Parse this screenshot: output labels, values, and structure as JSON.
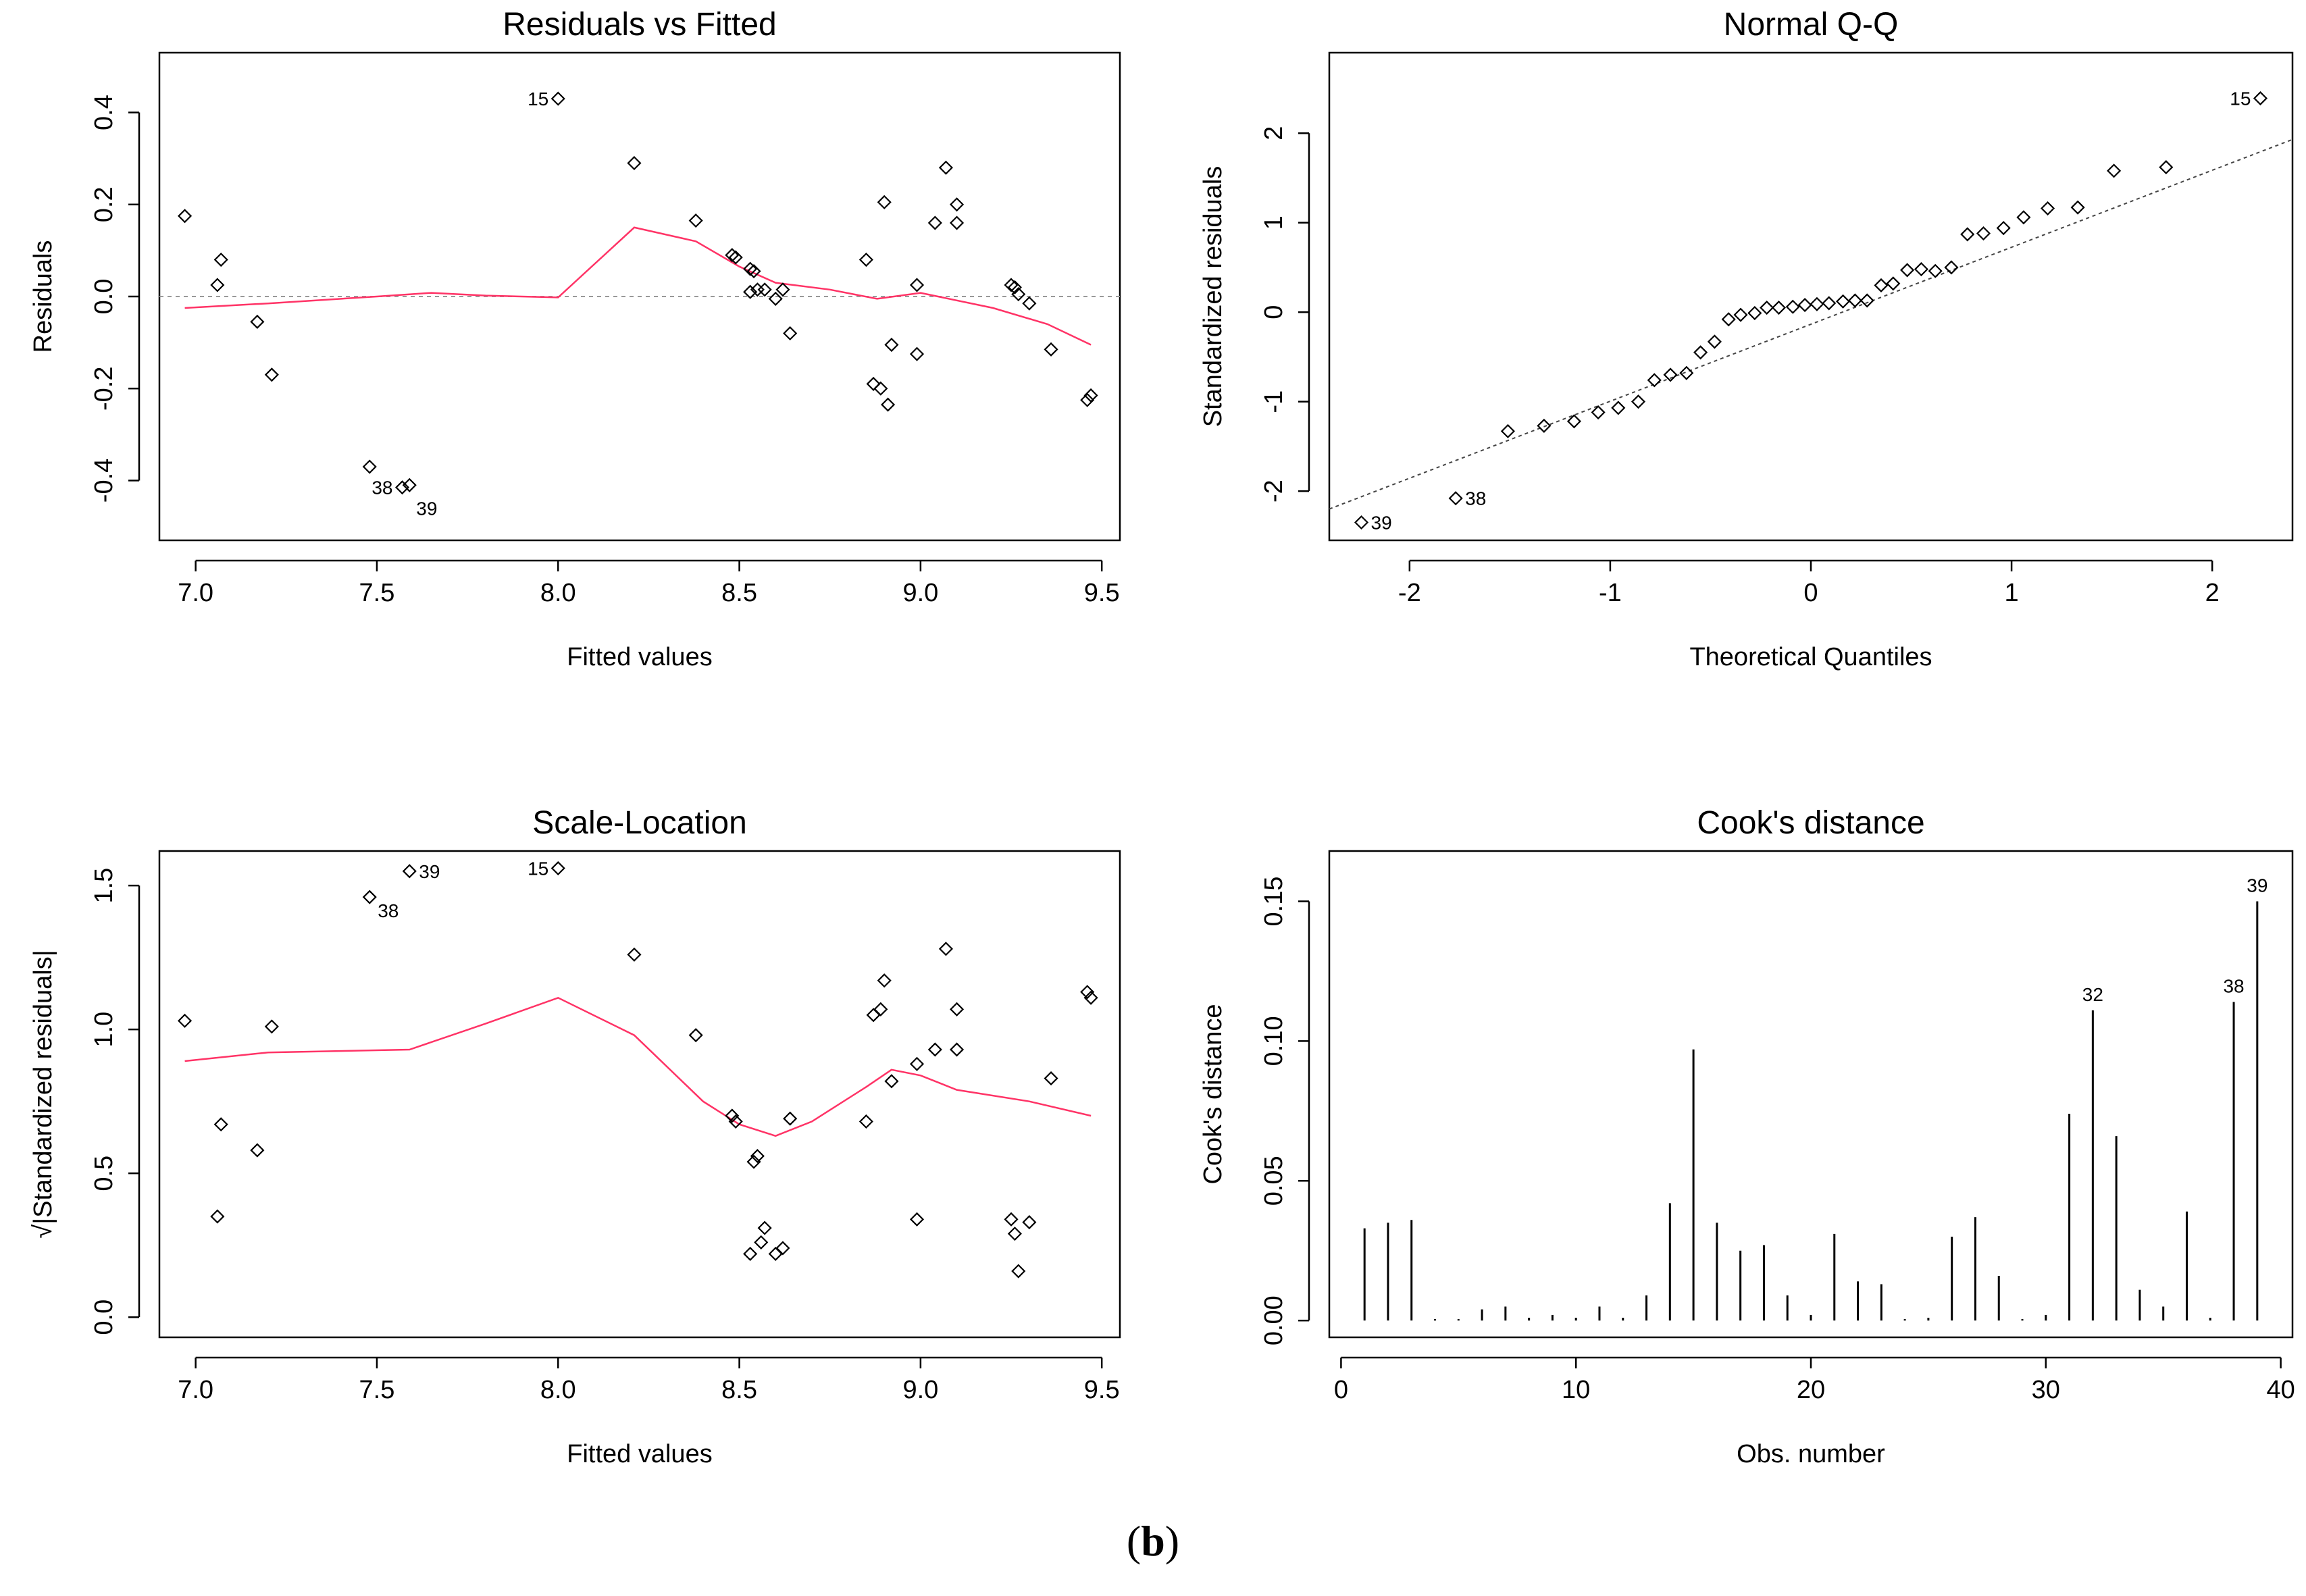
{
  "caption": {
    "open": "(",
    "letter": "b",
    "close": ")"
  },
  "colors": {
    "smooth": "#ff3366",
    "ref": "#999999",
    "ink": "#000000"
  },
  "chart_data": [
    {
      "id": "rvf",
      "type": "scatter",
      "title": "Residuals vs Fitted",
      "xlabel": "Fitted values",
      "ylabel": "Residuals",
      "xlim": [
        6.9,
        9.55
      ],
      "ylim": [
        -0.53,
        0.53
      ],
      "xticks": [
        7.0,
        7.5,
        8.0,
        8.5,
        9.0,
        9.5
      ],
      "xtick_labels": [
        "7.0",
        "7.5",
        "8.0",
        "8.5",
        "9.0",
        "9.5"
      ],
      "yticks": [
        -0.4,
        -0.2,
        0.0,
        0.2,
        0.4
      ],
      "ytick_labels": [
        "-0.4",
        "-0.2",
        "0.0",
        "0.2",
        "0.4"
      ],
      "points": [
        [
          6.97,
          0.175
        ],
        [
          7.06,
          0.025
        ],
        [
          7.07,
          0.08
        ],
        [
          7.17,
          -0.055
        ],
        [
          7.21,
          -0.17
        ],
        [
          7.48,
          -0.37
        ],
        [
          7.57,
          -0.415
        ],
        [
          7.59,
          -0.41
        ],
        [
          8.0,
          0.43
        ],
        [
          8.21,
          0.29
        ],
        [
          8.38,
          0.165
        ],
        [
          8.48,
          0.09
        ],
        [
          8.49,
          0.085
        ],
        [
          8.53,
          0.06
        ],
        [
          8.54,
          0.055
        ],
        [
          8.53,
          0.01
        ],
        [
          8.55,
          0.015
        ],
        [
          8.57,
          0.015
        ],
        [
          8.6,
          -0.005
        ],
        [
          8.62,
          0.015
        ],
        [
          8.64,
          -0.08
        ],
        [
          8.85,
          0.08
        ],
        [
          8.87,
          -0.19
        ],
        [
          8.9,
          0.205
        ],
        [
          8.89,
          -0.2
        ],
        [
          8.91,
          -0.235
        ],
        [
          8.92,
          -0.105
        ],
        [
          8.99,
          -0.125
        ],
        [
          8.99,
          0.025
        ],
        [
          9.04,
          0.16
        ],
        [
          9.07,
          0.28
        ],
        [
          9.1,
          0.2
        ],
        [
          9.1,
          0.16
        ],
        [
          9.25,
          0.025
        ],
        [
          9.26,
          0.02
        ],
        [
          9.27,
          0.005
        ],
        [
          9.3,
          -0.015
        ],
        [
          9.36,
          -0.115
        ],
        [
          9.46,
          -0.225
        ],
        [
          9.47,
          -0.215
        ]
      ],
      "labels": [
        {
          "text": "15",
          "x": 8.0,
          "y": 0.43,
          "side": "left"
        },
        {
          "text": "38",
          "x": 7.57,
          "y": -0.415,
          "side": "left"
        },
        {
          "text": "39",
          "x": 7.59,
          "y": -0.41,
          "side": "below"
        }
      ],
      "smooth": [
        [
          6.97,
          -0.025
        ],
        [
          7.2,
          -0.015
        ],
        [
          7.5,
          0.0
        ],
        [
          7.65,
          0.008
        ],
        [
          7.8,
          0.002
        ],
        [
          8.0,
          -0.002
        ],
        [
          8.21,
          0.15
        ],
        [
          8.38,
          0.12
        ],
        [
          8.5,
          0.065
        ],
        [
          8.6,
          0.03
        ],
        [
          8.75,
          0.015
        ],
        [
          8.88,
          -0.005
        ],
        [
          9.0,
          0.008
        ],
        [
          9.2,
          -0.025
        ],
        [
          9.35,
          -0.06
        ],
        [
          9.47,
          -0.105
        ]
      ],
      "hline": 0
    },
    {
      "id": "qq",
      "type": "scatter",
      "title": "Normal Q-Q",
      "xlabel": "Theoretical Quantiles",
      "ylabel": "Standardized residuals",
      "xlim": [
        -2.4,
        2.4
      ],
      "ylim": [
        -2.55,
        2.9
      ],
      "xticks": [
        -2,
        -1,
        0,
        1,
        2
      ],
      "xtick_labels": [
        "-2",
        "-1",
        "0",
        "1",
        "2"
      ],
      "yticks": [
        -2,
        -1,
        0,
        1,
        2
      ],
      "ytick_labels": [
        "-2",
        "-1",
        "0",
        "1",
        "2"
      ],
      "points": [
        [
          -2.24,
          -2.35
        ],
        [
          -1.77,
          -2.08
        ],
        [
          -1.51,
          -1.33
        ],
        [
          -1.33,
          -1.27
        ],
        [
          -1.18,
          -1.22
        ],
        [
          -1.06,
          -1.12
        ],
        [
          -0.96,
          -1.07
        ],
        [
          -0.86,
          -1.0
        ],
        [
          -0.78,
          -0.76
        ],
        [
          -0.7,
          -0.7
        ],
        [
          -0.62,
          -0.68
        ],
        [
          -0.55,
          -0.45
        ],
        [
          -0.48,
          -0.33
        ],
        [
          -0.41,
          -0.08
        ],
        [
          -0.35,
          -0.03
        ],
        [
          -0.28,
          -0.01
        ],
        [
          -0.22,
          0.05
        ],
        [
          -0.16,
          0.05
        ],
        [
          -0.09,
          0.06
        ],
        [
          -0.03,
          0.08
        ],
        [
          0.03,
          0.09
        ],
        [
          0.09,
          0.1
        ],
        [
          0.16,
          0.12
        ],
        [
          0.22,
          0.13
        ],
        [
          0.28,
          0.13
        ],
        [
          0.35,
          0.3
        ],
        [
          0.41,
          0.32
        ],
        [
          0.48,
          0.47
        ],
        [
          0.55,
          0.48
        ],
        [
          0.62,
          0.46
        ],
        [
          0.7,
          0.5
        ],
        [
          0.78,
          0.87
        ],
        [
          0.86,
          0.88
        ],
        [
          0.96,
          0.94
        ],
        [
          1.06,
          1.06
        ],
        [
          1.18,
          1.16
        ],
        [
          1.33,
          1.17
        ],
        [
          1.51,
          1.58
        ],
        [
          1.77,
          1.62
        ],
        [
          2.24,
          2.39
        ]
      ],
      "labels": [
        {
          "text": "39",
          "x": -2.24,
          "y": -2.35,
          "side": "right"
        },
        {
          "text": "38",
          "x": -1.77,
          "y": -2.08,
          "side": "right"
        },
        {
          "text": "15",
          "x": 2.24,
          "y": 2.39,
          "side": "left"
        }
      ],
      "ref_line": [
        [
          -2.4,
          -2.2
        ],
        [
          2.4,
          1.93
        ]
      ]
    },
    {
      "id": "sl",
      "type": "scatter",
      "title": "Scale-Location",
      "xlabel": "Fitted values",
      "ylabel": "√|Standardized residuals|",
      "xlim": [
        6.9,
        9.55
      ],
      "ylim": [
        -0.07,
        1.62
      ],
      "xticks": [
        7.0,
        7.5,
        8.0,
        8.5,
        9.0,
        9.5
      ],
      "xtick_labels": [
        "7.0",
        "7.5",
        "8.0",
        "8.5",
        "9.0",
        "9.5"
      ],
      "yticks": [
        0.0,
        0.5,
        1.0,
        1.5
      ],
      "ytick_labels": [
        "0.0",
        "0.5",
        "1.0",
        "1.5"
      ],
      "points": [
        [
          6.97,
          1.03
        ],
        [
          7.06,
          0.35
        ],
        [
          7.07,
          0.67
        ],
        [
          7.17,
          0.58
        ],
        [
          7.21,
          1.01
        ],
        [
          7.48,
          1.46
        ],
        [
          7.59,
          1.55
        ],
        [
          8.0,
          1.56
        ],
        [
          8.21,
          1.26
        ],
        [
          8.38,
          0.98
        ],
        [
          8.48,
          0.7
        ],
        [
          8.49,
          0.68
        ],
        [
          8.53,
          0.22
        ],
        [
          8.54,
          0.54
        ],
        [
          8.55,
          0.56
        ],
        [
          8.56,
          0.26
        ],
        [
          8.57,
          0.31
        ],
        [
          8.6,
          0.22
        ],
        [
          8.62,
          0.24
        ],
        [
          8.64,
          0.69
        ],
        [
          8.85,
          0.68
        ],
        [
          8.87,
          1.05
        ],
        [
          8.89,
          1.07
        ],
        [
          8.9,
          1.17
        ],
        [
          8.92,
          0.82
        ],
        [
          8.99,
          0.88
        ],
        [
          8.99,
          0.34
        ],
        [
          9.04,
          0.93
        ],
        [
          9.07,
          1.28
        ],
        [
          9.1,
          1.07
        ],
        [
          9.1,
          0.93
        ],
        [
          9.25,
          0.34
        ],
        [
          9.26,
          0.29
        ],
        [
          9.27,
          0.16
        ],
        [
          9.3,
          0.33
        ],
        [
          9.36,
          0.83
        ],
        [
          9.46,
          1.13
        ],
        [
          9.47,
          1.11
        ]
      ],
      "labels": [
        {
          "text": "38",
          "x": 7.48,
          "y": 1.46,
          "side": "belowright"
        },
        {
          "text": "39",
          "x": 7.59,
          "y": 1.55,
          "side": "right"
        },
        {
          "text": "15",
          "x": 8.0,
          "y": 1.56,
          "side": "left"
        }
      ],
      "smooth": [
        [
          6.97,
          0.89
        ],
        [
          7.2,
          0.92
        ],
        [
          7.59,
          0.93
        ],
        [
          7.8,
          1.02
        ],
        [
          8.0,
          1.11
        ],
        [
          8.21,
          0.98
        ],
        [
          8.4,
          0.75
        ],
        [
          8.5,
          0.67
        ],
        [
          8.6,
          0.63
        ],
        [
          8.7,
          0.68
        ],
        [
          8.85,
          0.8
        ],
        [
          8.92,
          0.86
        ],
        [
          9.0,
          0.84
        ],
        [
          9.1,
          0.79
        ],
        [
          9.3,
          0.75
        ],
        [
          9.47,
          0.7
        ]
      ]
    },
    {
      "id": "cook",
      "type": "bar",
      "title": "Cook's distance",
      "xlabel": "Obs. number",
      "ylabel": "Cook's distance",
      "xlim": [
        -0.5,
        40.5
      ],
      "ylim": [
        -0.006,
        0.168
      ],
      "xticks": [
        0,
        10,
        20,
        30,
        40
      ],
      "xtick_labels": [
        "0",
        "10",
        "20",
        "30",
        "40"
      ],
      "yticks": [
        0.0,
        0.05,
        0.1,
        0.15
      ],
      "ytick_labels": [
        "0.00",
        "0.05",
        "0.10",
        "0.15"
      ],
      "x": [
        1,
        2,
        3,
        4,
        5,
        6,
        7,
        8,
        9,
        10,
        11,
        12,
        13,
        14,
        15,
        16,
        17,
        18,
        19,
        20,
        21,
        22,
        23,
        24,
        25,
        26,
        27,
        28,
        29,
        30,
        31,
        32,
        33,
        34,
        35,
        36,
        37,
        38,
        39
      ],
      "values": [
        0.033,
        0.035,
        0.036,
        0.0005,
        0.0005,
        0.004,
        0.005,
        0.001,
        0.002,
        0.001,
        0.005,
        0.001,
        0.009,
        0.042,
        0.097,
        0.035,
        0.025,
        0.027,
        0.009,
        0.002,
        0.031,
        0.014,
        0.013,
        0.0005,
        0.001,
        0.03,
        0.037,
        0.016,
        0.0005,
        0.002,
        0.074,
        0.111,
        0.066,
        0.011,
        0.005,
        0.039,
        0.001,
        0.114,
        0.15
      ],
      "labels": [
        {
          "text": "32",
          "x": 32,
          "y": 0.111
        },
        {
          "text": "38",
          "x": 38,
          "y": 0.114
        },
        {
          "text": "39",
          "x": 39,
          "y": 0.15
        }
      ]
    }
  ]
}
